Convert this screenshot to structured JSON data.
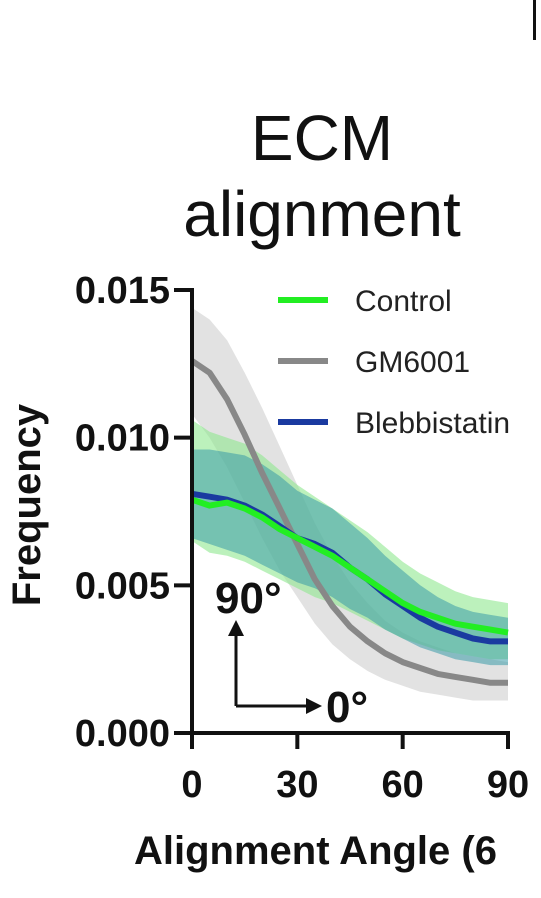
{
  "chart_data": {
    "type": "line",
    "title_lines": [
      "ECM",
      "alignment"
    ],
    "xlabel": "Alignment Angle (6",
    "ylabel": "Frequency",
    "xlim": [
      0,
      90
    ],
    "ylim": [
      0,
      0.015
    ],
    "xticks": [
      0,
      30,
      60,
      90
    ],
    "xtick_labels": [
      "0",
      "30",
      "60",
      "90"
    ],
    "yticks": [
      0,
      0.005,
      0.01,
      0.015
    ],
    "ytick_labels": [
      "0.000",
      "0.005",
      "0.010",
      "0.015"
    ],
    "legend_position": "top-right",
    "annotations": [
      "90°",
      "0°"
    ],
    "series": [
      {
        "name": "Control",
        "color": "#22ee22",
        "band_color": "#8fe88f",
        "x": [
          0,
          5,
          10,
          15,
          20,
          25,
          30,
          35,
          40,
          45,
          50,
          55,
          60,
          65,
          70,
          75,
          80,
          85,
          90
        ],
        "values": [
          0.0079,
          0.0077,
          0.0078,
          0.0076,
          0.0073,
          0.0069,
          0.0066,
          0.0063,
          0.006,
          0.0056,
          0.0052,
          0.0048,
          0.0044,
          0.0041,
          0.0039,
          0.0037,
          0.0036,
          0.0035,
          0.0034
        ],
        "lower": [
          0.0065,
          0.0061,
          0.006,
          0.0058,
          0.0055,
          0.0052,
          0.0049,
          0.0046,
          0.0044,
          0.0041,
          0.0038,
          0.0035,
          0.0032,
          0.003,
          0.0028,
          0.0027,
          0.0026,
          0.0025,
          0.0025
        ],
        "upper": [
          0.0106,
          0.0102,
          0.01,
          0.0098,
          0.0094,
          0.0089,
          0.0084,
          0.008,
          0.0076,
          0.0072,
          0.0068,
          0.0063,
          0.0058,
          0.0054,
          0.0051,
          0.0048,
          0.0046,
          0.0045,
          0.0044
        ]
      },
      {
        "name": "GM6001",
        "color": "#888888",
        "band_color": "#cfcfcf",
        "x": [
          0,
          5,
          10,
          15,
          20,
          25,
          30,
          35,
          40,
          45,
          50,
          55,
          60,
          65,
          70,
          75,
          80,
          85,
          90
        ],
        "values": [
          0.0126,
          0.0122,
          0.0113,
          0.0101,
          0.0088,
          0.0076,
          0.0064,
          0.0052,
          0.0043,
          0.0036,
          0.0031,
          0.0027,
          0.0024,
          0.0022,
          0.002,
          0.0019,
          0.0018,
          0.0017,
          0.0017
        ],
        "lower": [
          0.0108,
          0.01,
          0.009,
          0.0078,
          0.0066,
          0.0055,
          0.0046,
          0.0037,
          0.003,
          0.0025,
          0.0021,
          0.0018,
          0.0016,
          0.0014,
          0.0013,
          0.0012,
          0.0011,
          0.0011,
          0.0011
        ],
        "upper": [
          0.0144,
          0.014,
          0.0133,
          0.0122,
          0.011,
          0.0097,
          0.0084,
          0.0071,
          0.006,
          0.0051,
          0.0044,
          0.0038,
          0.0034,
          0.0031,
          0.0029,
          0.0027,
          0.0026,
          0.0025,
          0.0024
        ]
      },
      {
        "name": "Blebbistatin",
        "color": "#1a3aa0",
        "band_color": "#3a9aa8",
        "x": [
          0,
          5,
          10,
          15,
          20,
          25,
          30,
          35,
          40,
          45,
          50,
          55,
          60,
          65,
          70,
          75,
          80,
          85,
          90
        ],
        "values": [
          0.0081,
          0.008,
          0.0079,
          0.0077,
          0.0074,
          0.007,
          0.0066,
          0.0064,
          0.0061,
          0.0056,
          0.0052,
          0.0047,
          0.0043,
          0.0039,
          0.0036,
          0.0034,
          0.0032,
          0.0031,
          0.0031
        ],
        "lower": [
          0.0066,
          0.0064,
          0.0062,
          0.006,
          0.0057,
          0.0054,
          0.0051,
          0.0049,
          0.0046,
          0.0042,
          0.0039,
          0.0035,
          0.0032,
          0.0029,
          0.0027,
          0.0025,
          0.0024,
          0.0023,
          0.0023
        ],
        "upper": [
          0.0096,
          0.0096,
          0.0095,
          0.0094,
          0.0091,
          0.0087,
          0.0082,
          0.0079,
          0.0076,
          0.0071,
          0.0066,
          0.006,
          0.0055,
          0.005,
          0.0046,
          0.0043,
          0.0041,
          0.004,
          0.0039
        ]
      }
    ]
  }
}
